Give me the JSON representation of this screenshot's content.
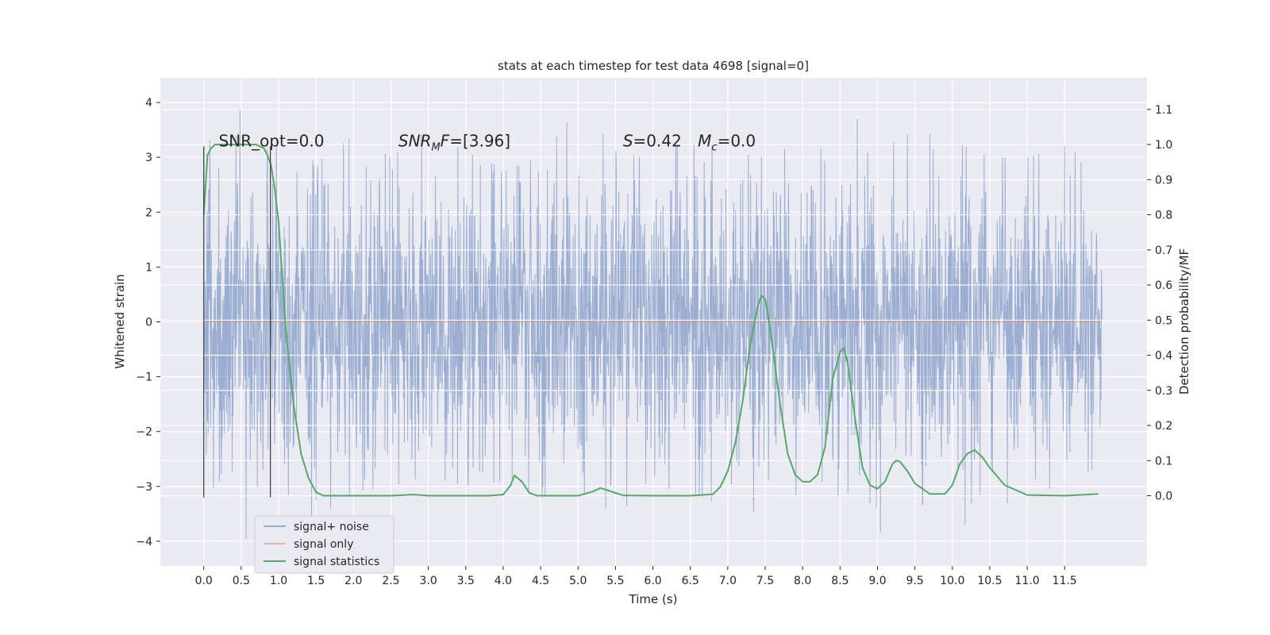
{
  "chart_data": {
    "type": "line",
    "title": "stats at each timestep for test data 4698 [signal=0]",
    "xlabel": "Time (s)",
    "ylabel": "Whitened strain",
    "y2label": "Detection probability/MF",
    "xlim": [
      -0.58,
      12.6
    ],
    "ylim": [
      -4.45,
      4.45
    ],
    "y2lim": [
      -0.2,
      1.19
    ],
    "x_ticks": [
      0.0,
      0.5,
      1.0,
      1.5,
      2.0,
      2.5,
      3.0,
      3.5,
      4.0,
      4.5,
      5.0,
      5.5,
      6.0,
      6.5,
      7.0,
      7.5,
      8.0,
      8.5,
      9.0,
      9.5,
      10.0,
      10.5,
      11.0,
      11.5
    ],
    "x_tick_labels": [
      "0.0",
      "0.5",
      "1.0",
      "1.5",
      "2.0",
      "2.5",
      "3.0",
      "3.5",
      "4.0",
      "4.5",
      "5.0",
      "5.5",
      "6.0",
      "6.5",
      "7.0",
      "7.5",
      "8.0",
      "8.5",
      "9.0",
      "9.5",
      "10.0",
      "10.5",
      "11.0",
      "11.5"
    ],
    "y_ticks": [
      -4,
      -3,
      -2,
      -1,
      0,
      1,
      2,
      3,
      4
    ],
    "y_tick_labels": [
      "−4",
      "−3",
      "−2",
      "−1",
      "0",
      "1",
      "2",
      "3",
      "4"
    ],
    "y2_ticks": [
      0.0,
      0.1,
      0.2,
      0.3,
      0.4,
      0.5,
      0.6,
      0.7,
      0.8,
      0.9,
      1.0,
      1.1
    ],
    "y2_tick_labels": [
      "0.0",
      "0.1",
      "0.2",
      "0.3",
      "0.4",
      "0.5",
      "0.6",
      "0.7",
      "0.8",
      "0.9",
      "1.0",
      "1.1"
    ],
    "grid": true,
    "legend_position": "lower-left",
    "series": [
      {
        "name": "signal+ noise",
        "color": "#4c72b0",
        "axis": "left",
        "x_range": [
          0.0,
          12.0
        ],
        "envelope": {
          "x": [
            0.0,
            0.5,
            1.0,
            1.5,
            2.0,
            2.5,
            3.0,
            3.5,
            4.0,
            4.5,
            5.0,
            5.5,
            6.0,
            6.5,
            7.0,
            7.5,
            8.0,
            8.5,
            8.85,
            9.0,
            9.5,
            10.0,
            10.5,
            11.0,
            11.5,
            12.0
          ],
          "upper": [
            3.2,
            3.9,
            3.3,
            2.9,
            3.4,
            3.0,
            3.5,
            3.1,
            2.8,
            3.0,
            3.9,
            3.2,
            2.9,
            3.4,
            3.1,
            3.0,
            3.3,
            3.0,
            4.05,
            3.1,
            3.5,
            3.3,
            3.0,
            3.0,
            3.2,
            2.8
          ],
          "lower": [
            -3.2,
            -4.1,
            -3.0,
            -3.6,
            -3.1,
            -3.0,
            -2.8,
            -3.0,
            -2.9,
            -3.2,
            -3.1,
            -3.5,
            -3.0,
            -3.1,
            -3.4,
            -3.5,
            -3.1,
            -3.2,
            -3.0,
            -3.9,
            -3.2,
            -3.8,
            -3.5,
            -3.1,
            -3.0,
            -2.6
          ]
        },
        "typical_amplitude": 1.8
      },
      {
        "name": "signal only",
        "color": "#dd8452",
        "axis": "left",
        "x": [
          0.0,
          12.0
        ],
        "y": [
          0.0,
          0.0
        ]
      },
      {
        "name": "signal statistics",
        "color": "#55a868",
        "axis": "right",
        "x": [
          0.0,
          0.05,
          0.1,
          0.15,
          0.2,
          0.3,
          0.4,
          0.5,
          0.6,
          0.7,
          0.8,
          0.85,
          0.9,
          0.95,
          1.0,
          1.05,
          1.1,
          1.2,
          1.3,
          1.4,
          1.5,
          1.6,
          1.8,
          2.0,
          2.5,
          2.8,
          3.0,
          3.5,
          3.8,
          4.0,
          4.1,
          4.15,
          4.25,
          4.35,
          4.45,
          4.6,
          5.0,
          5.2,
          5.3,
          5.4,
          5.6,
          6.0,
          6.5,
          6.8,
          6.9,
          7.0,
          7.1,
          7.2,
          7.3,
          7.4,
          7.45,
          7.5,
          7.55,
          7.6,
          7.7,
          7.8,
          7.9,
          8.0,
          8.1,
          8.2,
          8.3,
          8.4,
          8.5,
          8.55,
          8.6,
          8.7,
          8.8,
          8.9,
          9.0,
          9.1,
          9.2,
          9.25,
          9.3,
          9.4,
          9.5,
          9.7,
          9.9,
          10.0,
          10.1,
          10.2,
          10.3,
          10.4,
          10.5,
          10.7,
          11.0,
          11.5,
          11.8,
          11.95
        ],
        "y": [
          0.8,
          0.97,
          0.99,
          1.0,
          1.0,
          1.0,
          1.0,
          1.0,
          1.0,
          1.0,
          0.99,
          0.97,
          0.94,
          0.87,
          0.78,
          0.62,
          0.46,
          0.26,
          0.12,
          0.05,
          0.01,
          0.0,
          0.0,
          0.0,
          0.0,
          0.003,
          0.0,
          0.0,
          0.0,
          0.003,
          0.03,
          0.058,
          0.04,
          0.008,
          0.0,
          0.0,
          0.0,
          0.012,
          0.022,
          0.015,
          0.001,
          0.0,
          0.0,
          0.004,
          0.025,
          0.07,
          0.15,
          0.27,
          0.43,
          0.54,
          0.57,
          0.56,
          0.5,
          0.42,
          0.26,
          0.12,
          0.06,
          0.04,
          0.04,
          0.06,
          0.14,
          0.33,
          0.41,
          0.42,
          0.38,
          0.22,
          0.08,
          0.03,
          0.02,
          0.04,
          0.09,
          0.1,
          0.097,
          0.07,
          0.035,
          0.005,
          0.005,
          0.03,
          0.09,
          0.12,
          0.13,
          0.11,
          0.08,
          0.03,
          0.002,
          0.0,
          0.003,
          0.005
        ]
      }
    ],
    "vertical_markers": [
      {
        "x": 0.0,
        "y_range": [
          -3.2,
          3.2
        ],
        "color": "#3a3a3a"
      },
      {
        "x": 0.89,
        "y_range": [
          -3.2,
          3.2
        ],
        "color": "#3a3a3a"
      }
    ],
    "annotations": [
      {
        "kind": "plain",
        "x": 0.2,
        "y": 3.2,
        "text": "SNR_opt=0.0"
      },
      {
        "kind": "mf",
        "x": 2.6,
        "y": 3.2,
        "main": "SNR",
        "sub": "M",
        "rest": "F=[3.96]"
      },
      {
        "kind": "s",
        "x": 5.6,
        "y": 3.2,
        "italic": "S",
        "rest": "=0.42"
      },
      {
        "kind": "mc",
        "x": 6.6,
        "y": 3.2,
        "main": "M",
        "sub": "c",
        "rest": "=0.0"
      }
    ]
  }
}
